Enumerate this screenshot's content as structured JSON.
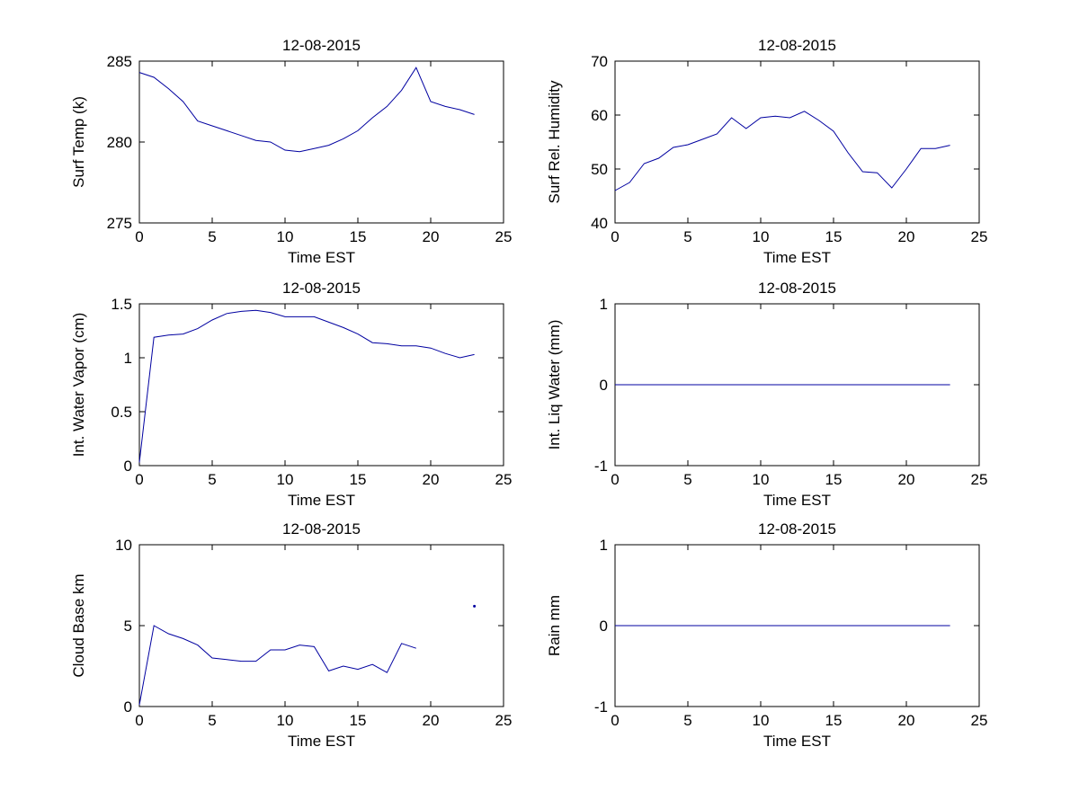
{
  "figure": {
    "background": "#ffffff"
  },
  "style": {
    "line_color": "#0000A0",
    "axis_color": "#000000",
    "font_size": 17
  },
  "chart_data": [
    {
      "type": "line",
      "title": "12-08-2015",
      "xlabel": "Time EST",
      "ylabel": "Surf Temp (k)",
      "xlim": [
        0,
        25
      ],
      "ylim": [
        275,
        285
      ],
      "xticks": [
        0,
        5,
        10,
        15,
        20,
        25
      ],
      "yticks": [
        275,
        280,
        285
      ],
      "grid": false,
      "legend": "none",
      "x": [
        0,
        1,
        2,
        3,
        4,
        5,
        6,
        7,
        8,
        9,
        10,
        11,
        12,
        13,
        14,
        15,
        16,
        17,
        18,
        19,
        20,
        21,
        22,
        23
      ],
      "y": [
        284.3,
        284.0,
        283.3,
        282.5,
        281.3,
        281.0,
        280.7,
        280.4,
        280.1,
        280.0,
        279.5,
        279.4,
        279.6,
        279.8,
        280.2,
        280.7,
        281.5,
        282.2,
        283.2,
        284.6,
        282.5,
        282.2,
        282.0,
        281.7
      ]
    },
    {
      "type": "line",
      "title": "12-08-2015",
      "xlabel": "Time EST",
      "ylabel": "Surf Rel. Humidity",
      "xlim": [
        0,
        25
      ],
      "ylim": [
        40,
        70
      ],
      "xticks": [
        0,
        5,
        10,
        15,
        20,
        25
      ],
      "yticks": [
        40,
        50,
        60,
        70
      ],
      "grid": false,
      "legend": "none",
      "x": [
        0,
        1,
        2,
        3,
        4,
        5,
        6,
        7,
        8,
        9,
        10,
        11,
        12,
        13,
        14,
        15,
        16,
        17,
        18,
        19,
        20,
        21,
        22,
        23
      ],
      "y": [
        46,
        47.5,
        51,
        52,
        54,
        54.5,
        55.5,
        56.5,
        59.5,
        57.5,
        59.5,
        59.8,
        59.5,
        60.7,
        59,
        57,
        53,
        49.5,
        49.3,
        46.5,
        50,
        53.8,
        53.8,
        54.4
      ]
    },
    {
      "type": "line",
      "title": "12-08-2015",
      "xlabel": "Time EST",
      "ylabel": "Int. Water Vapor (cm)",
      "xlim": [
        0,
        25
      ],
      "ylim": [
        0,
        1.5
      ],
      "xticks": [
        0,
        5,
        10,
        15,
        20,
        25
      ],
      "yticks": [
        0,
        0.5,
        1,
        1.5
      ],
      "grid": false,
      "legend": "none",
      "x": [
        0,
        1,
        2,
        3,
        4,
        5,
        6,
        7,
        8,
        9,
        10,
        11,
        12,
        13,
        14,
        15,
        16,
        17,
        18,
        19,
        20,
        21,
        22,
        23
      ],
      "y": [
        0.03,
        1.19,
        1.21,
        1.22,
        1.27,
        1.35,
        1.41,
        1.43,
        1.44,
        1.42,
        1.38,
        1.38,
        1.38,
        1.33,
        1.28,
        1.22,
        1.14,
        1.13,
        1.11,
        1.11,
        1.09,
        1.04,
        1.0,
        1.03
      ]
    },
    {
      "type": "line",
      "title": "12-08-2015",
      "xlabel": "Time EST",
      "ylabel": "Int. Liq Water (mm)",
      "xlim": [
        0,
        25
      ],
      "ylim": [
        -1,
        1
      ],
      "xticks": [
        0,
        5,
        10,
        15,
        20,
        25
      ],
      "yticks": [
        -1,
        0,
        1
      ],
      "grid": false,
      "legend": "none",
      "x": [
        0,
        1,
        2,
        3,
        4,
        5,
        6,
        7,
        8,
        9,
        10,
        11,
        12,
        13,
        14,
        15,
        16,
        17,
        18,
        19,
        20,
        21,
        22,
        23
      ],
      "y": [
        0,
        0,
        0,
        0,
        0,
        0,
        0,
        0,
        0,
        0,
        0,
        0,
        0,
        0,
        0,
        0,
        0,
        0,
        0,
        0,
        0,
        0,
        0,
        0
      ]
    },
    {
      "type": "line",
      "title": "12-08-2015",
      "xlabel": "Time EST",
      "ylabel": "Cloud Base km",
      "xlim": [
        0,
        25
      ],
      "ylim": [
        0,
        10
      ],
      "xticks": [
        0,
        5,
        10,
        15,
        20,
        25
      ],
      "yticks": [
        0,
        5,
        10
      ],
      "grid": false,
      "legend": "none",
      "x": [
        0,
        1,
        2,
        3,
        4,
        5,
        6,
        7,
        8,
        9,
        10,
        11,
        12,
        13,
        14,
        15,
        16,
        17,
        18,
        19
      ],
      "y": [
        0.1,
        5.0,
        4.5,
        4.2,
        3.8,
        3.0,
        2.9,
        2.8,
        2.8,
        3.5,
        3.5,
        3.8,
        3.7,
        2.2,
        2.5,
        2.3,
        2.6,
        2.1,
        3.9,
        3.6
      ],
      "points": [
        {
          "x": 23,
          "y": 6.2
        }
      ]
    },
    {
      "type": "line",
      "title": "12-08-2015",
      "xlabel": "Time EST",
      "ylabel": "Rain mm",
      "xlim": [
        0,
        25
      ],
      "ylim": [
        -1,
        1
      ],
      "xticks": [
        0,
        5,
        10,
        15,
        20,
        25
      ],
      "yticks": [
        -1,
        0,
        1
      ],
      "grid": false,
      "legend": "none",
      "x": [
        0,
        1,
        2,
        3,
        4,
        5,
        6,
        7,
        8,
        9,
        10,
        11,
        12,
        13,
        14,
        15,
        16,
        17,
        18,
        19,
        20,
        21,
        22,
        23
      ],
      "y": [
        0,
        0,
        0,
        0,
        0,
        0,
        0,
        0,
        0,
        0,
        0,
        0,
        0,
        0,
        0,
        0,
        0,
        0,
        0,
        0,
        0,
        0,
        0,
        0
      ]
    }
  ]
}
